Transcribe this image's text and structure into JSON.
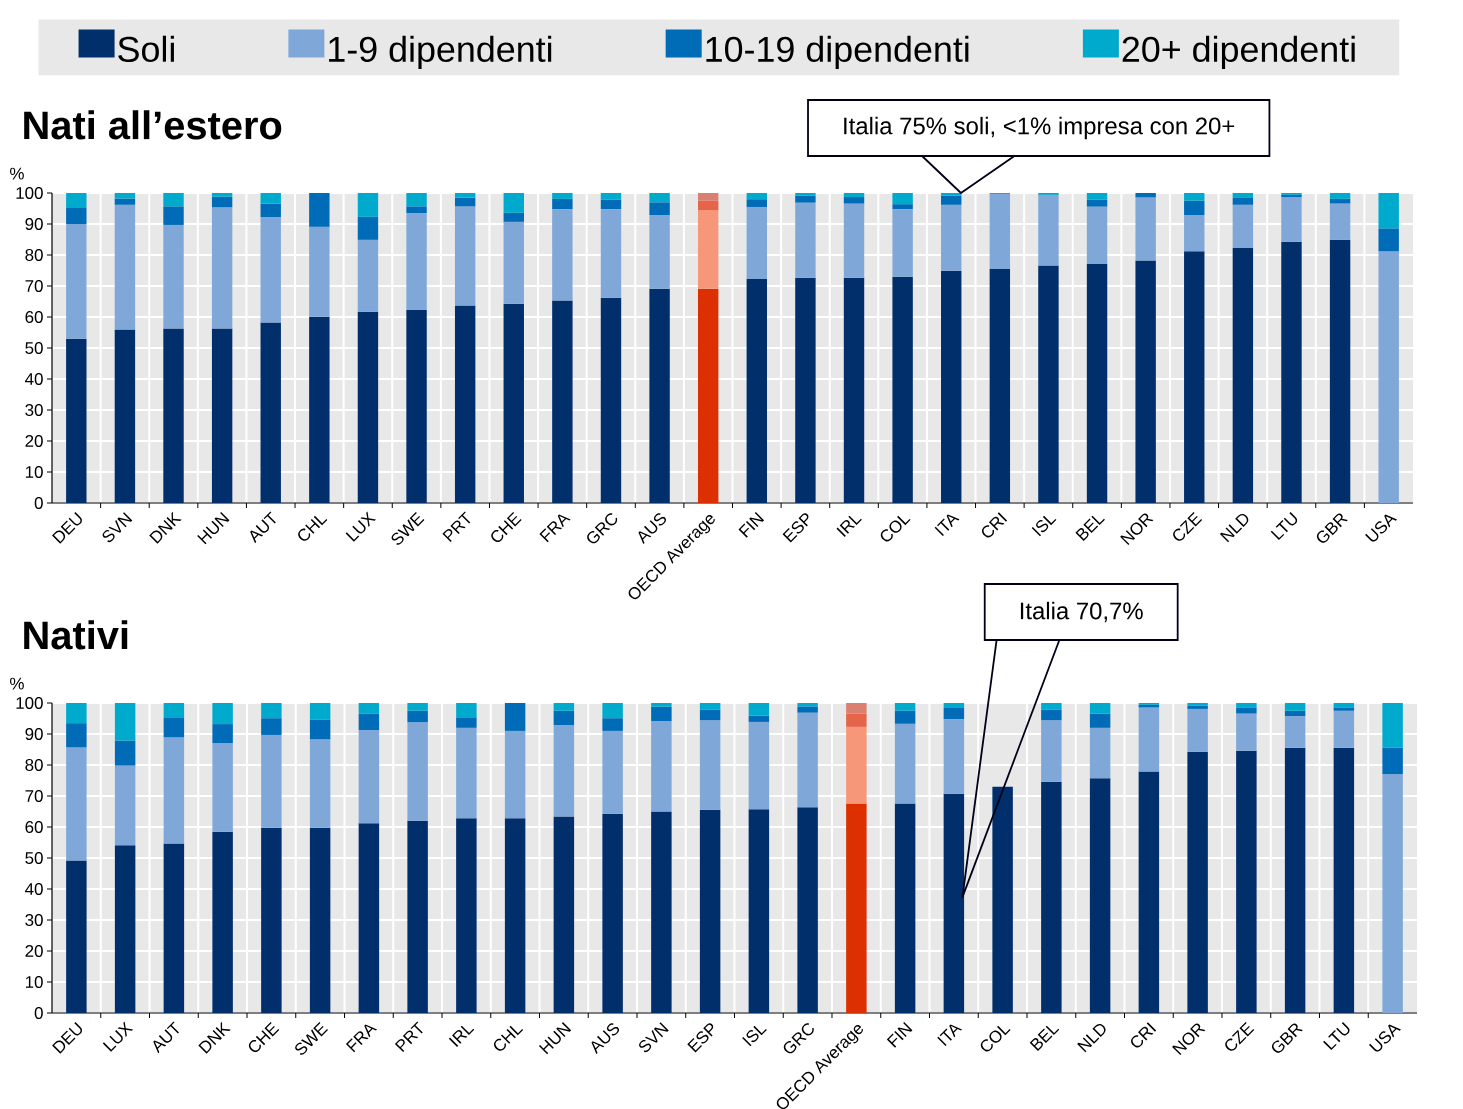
{
  "chart_data": [
    {
      "type": "bar",
      "title": "Nati all’estero",
      "ylabel": "%",
      "stacked": true,
      "grid": true,
      "legend": "top",
      "ylim": [
        0,
        100
      ],
      "yticks": [
        0,
        10,
        20,
        30,
        40,
        50,
        60,
        70,
        80,
        90,
        100
      ],
      "categories": [
        "DEU",
        "SVN",
        "DNK",
        "HUN",
        "AUT",
        "CHL",
        "LUX",
        "SWE",
        "PRT",
        "CHE",
        "FRA",
        "GRC",
        "AUS",
        "OECD Average",
        "FIN",
        "ESP",
        "IRL",
        "COL",
        "ITA",
        "CRI",
        "ISL",
        "BEL",
        "NOR",
        "CZE",
        "NLD",
        "LTU",
        "GBR",
        "USA"
      ],
      "series": [
        {
          "name": "Soli",
          "color": "#002f6c",
          "colors": [
            "#002f6c",
            "#002f6c",
            "#002f6c",
            "#002f6c",
            "#002f6c",
            "#002f6c",
            "#002f6c",
            "#002f6c",
            "#002f6c",
            "#002f6c",
            "#002f6c",
            "#002f6c",
            "#002f6c",
            "#dc3000",
            "#002f6c",
            "#002f6c",
            "#002f6c",
            "#002f6c",
            "#002f6c",
            "#002f6c",
            "#002f6c",
            "#002f6c",
            "#002f6c",
            "#002f6c",
            "#002f6c",
            "#002f6c",
            "#002f6c",
            "#002f6c"
          ],
          "values": [
            53.0,
            56.0,
            56.3,
            56.3,
            58.2,
            60.1,
            61.7,
            62.3,
            63.7,
            64.3,
            65.3,
            66.2,
            69.1,
            69.1,
            72.3,
            72.7,
            72.7,
            73.0,
            74.9,
            75.5,
            76.6,
            77.1,
            78.2,
            81.2,
            82.3,
            84.3,
            84.9,
            0
          ]
        },
        {
          "name": "1-9 dipendenti",
          "color": "#7fa8d9",
          "colors": [
            "#7fa8d9",
            "#7fa8d9",
            "#7fa8d9",
            "#7fa8d9",
            "#7fa8d9",
            "#7fa8d9",
            "#7fa8d9",
            "#7fa8d9",
            "#7fa8d9",
            "#7fa8d9",
            "#7fa8d9",
            "#7fa8d9",
            "#7fa8d9",
            "#f79779",
            "#7fa8d9",
            "#7fa8d9",
            "#7fa8d9",
            "#7fa8d9",
            "#7fa8d9",
            "#7fa8d9",
            "#7fa8d9",
            "#7fa8d9",
            "#7fa8d9",
            "#7fa8d9",
            "#7fa8d9",
            "#7fa8d9",
            "#7fa8d9",
            "#7fa8d9"
          ],
          "values": [
            37.0,
            40.2,
            33.4,
            39.1,
            34.0,
            29.0,
            23.2,
            31.2,
            32.0,
            26.4,
            29.5,
            28.6,
            23.8,
            25.4,
            23.2,
            24.2,
            23.9,
            21.8,
            21.3,
            24.2,
            22.8,
            18.5,
            20.4,
            11.7,
            13.9,
            14.4,
            11.7,
            81.2
          ]
        },
        {
          "name": "10-19 dipendenti",
          "color": "#006bb6",
          "colors": [
            "#006bb6",
            "#006bb6",
            "#006bb6",
            "#006bb6",
            "#006bb6",
            "#006bb6",
            "#006bb6",
            "#006bb6",
            "#006bb6",
            "#006bb6",
            "#006bb6",
            "#006bb6",
            "#006bb6",
            "#e5644a",
            "#006bb6",
            "#006bb6",
            "#006bb6",
            "#006bb6",
            "#006bb6",
            "#006bb6",
            "#006bb6",
            "#006bb6",
            "#006bb6",
            "#006bb6",
            "#006bb6",
            "#006bb6",
            "#006bb6",
            "#006bb6"
          ],
          "values": [
            5.4,
            2.0,
            6.0,
            3.4,
            4.4,
            10.9,
            7.4,
            2.2,
            2.8,
            2.9,
            3.3,
            3.0,
            4.1,
            3.1,
            2.5,
            2.2,
            2.1,
            1.6,
            3.0,
            0,
            0,
            2.2,
            1.4,
            4.6,
            2.2,
            0.7,
            1.5,
            7.4
          ]
        },
        {
          "name": "20+ dipendenti",
          "color": "#00aacc",
          "colors": [
            "#00aacc",
            "#00aacc",
            "#00aacc",
            "#00aacc",
            "#00aacc",
            "#00aacc",
            "#00aacc",
            "#00aacc",
            "#00aacc",
            "#00aacc",
            "#00aacc",
            "#00aacc",
            "#00aacc",
            "#d98070",
            "#00aacc",
            "#00aacc",
            "#00aacc",
            "#00aacc",
            "#00aacc",
            "#00aacc",
            "#00aacc",
            "#00aacc",
            "#00aacc",
            "#00aacc",
            "#00aacc",
            "#00aacc",
            "#00aacc",
            "#00aacc"
          ],
          "values": [
            4.6,
            1.8,
            4.3,
            1.2,
            3.4,
            0,
            7.7,
            4.3,
            1.5,
            6.4,
            1.9,
            2.2,
            3.0,
            2.4,
            2.0,
            0.9,
            1.3,
            3.6,
            0.8,
            0.3,
            0.6,
            2.2,
            0,
            2.5,
            1.6,
            0.6,
            1.9,
            11.4
          ]
        }
      ],
      "annotations": [
        {
          "text": "Italia 75% soli, <1% impresa con 20+",
          "x": "ITA",
          "y": 100
        }
      ]
    },
    {
      "type": "bar",
      "title": "Nativi",
      "ylabel": "%",
      "stacked": true,
      "grid": true,
      "ylim": [
        0,
        100
      ],
      "yticks": [
        0,
        10,
        20,
        30,
        40,
        50,
        60,
        70,
        80,
        90,
        100
      ],
      "categories": [
        "DEU",
        "LUX",
        "AUT",
        "DNK",
        "CHE",
        "SWE",
        "FRA",
        "PRT",
        "IRL",
        "CHL",
        "HUN",
        "AUS",
        "SVN",
        "ESP",
        "ISL",
        "GRC",
        "OECD Average",
        "FIN",
        "ITA",
        "COL",
        "BEL",
        "NLD",
        "CRI",
        "NOR",
        "CZE",
        "GBR",
        "LTU",
        "USA"
      ],
      "series": [
        {
          "colors": [
            "#002f6c",
            "#002f6c",
            "#002f6c",
            "#002f6c",
            "#002f6c",
            "#002f6c",
            "#002f6c",
            "#002f6c",
            "#002f6c",
            "#002f6c",
            "#002f6c",
            "#002f6c",
            "#002f6c",
            "#002f6c",
            "#002f6c",
            "#002f6c",
            "#dc3000",
            "#002f6c",
            "#002f6c",
            "#002f6c",
            "#002f6c",
            "#002f6c",
            "#002f6c",
            "#002f6c",
            "#002f6c",
            "#002f6c",
            "#002f6c",
            "#002f6c"
          ],
          "values": [
            49.2,
            54.1,
            54.7,
            58.5,
            59.8,
            59.8,
            61.2,
            62.0,
            62.8,
            62.8,
            63.4,
            64.3,
            65.0,
            65.6,
            65.7,
            66.4,
            67.6,
            67.6,
            70.7,
            73.0,
            74.6,
            75.7,
            77.9,
            84.3,
            84.6,
            85.6,
            85.6,
            0
          ]
        },
        {
          "colors": [
            "#7fa8d9",
            "#7fa8d9",
            "#7fa8d9",
            "#7fa8d9",
            "#7fa8d9",
            "#7fa8d9",
            "#7fa8d9",
            "#7fa8d9",
            "#7fa8d9",
            "#7fa8d9",
            "#7fa8d9",
            "#7fa8d9",
            "#7fa8d9",
            "#7fa8d9",
            "#7fa8d9",
            "#7fa8d9",
            "#f79779",
            "#7fa8d9",
            "#7fa8d9",
            "#7fa8d9",
            "#7fa8d9",
            "#7fa8d9",
            "#7fa8d9",
            "#7fa8d9",
            "#7fa8d9",
            "#7fa8d9",
            "#7fa8d9",
            "#7fa8d9"
          ],
          "values": [
            36.5,
            25.7,
            34.2,
            28.6,
            29.9,
            28.5,
            30.1,
            31.8,
            29.2,
            28.2,
            29.5,
            26.7,
            29.2,
            28.9,
            28.2,
            30.5,
            24.7,
            25.7,
            24.1,
            null,
            19.9,
            16.3,
            20.7,
            13.8,
            12.0,
            10.2,
            11.9,
            77.1
          ]
        },
        {
          "colors": [
            "#006bb6",
            "#006bb6",
            "#006bb6",
            "#006bb6",
            "#006bb6",
            "#006bb6",
            "#006bb6",
            "#006bb6",
            "#006bb6",
            "#006bb6",
            "#006bb6",
            "#006bb6",
            "#006bb6",
            "#006bb6",
            "#006bb6",
            "#006bb6",
            "#e5644a",
            "#006bb6",
            "#006bb6",
            "#006bb6",
            "#006bb6",
            "#006bb6",
            "#006bb6",
            "#006bb6",
            "#006bb6",
            "#006bb6",
            "#006bb6",
            "#006bb6"
          ],
          "values": [
            7.8,
            8.1,
            6.5,
            6.1,
            5.4,
            6.4,
            5.2,
            3.7,
            3.4,
            9.0,
            4.6,
            4.1,
            4.6,
            3.3,
            2.0,
            2.0,
            4.3,
            4.2,
            3.6,
            null,
            3.3,
            4.6,
            0.8,
            1.0,
            2.0,
            1.7,
            1.1,
            8.5
          ]
        },
        {
          "colors": [
            "#00aacc",
            "#00aacc",
            "#00aacc",
            "#00aacc",
            "#00aacc",
            "#00aacc",
            "#00aacc",
            "#00aacc",
            "#00aacc",
            "#00aacc",
            "#00aacc",
            "#00aacc",
            "#00aacc",
            "#00aacc",
            "#00aacc",
            "#00aacc",
            "#d98070",
            "#00aacc",
            "#00aacc",
            "#00aacc",
            "#00aacc",
            "#00aacc",
            "#00aacc",
            "#00aacc",
            "#00aacc",
            "#00aacc",
            "#00aacc",
            "#00aacc"
          ],
          "values": [
            6.5,
            12.1,
            4.6,
            6.8,
            4.9,
            5.3,
            3.5,
            2.5,
            4.6,
            0,
            2.5,
            4.9,
            1.2,
            2.2,
            4.1,
            1.1,
            3.4,
            2.5,
            1.6,
            null,
            2.2,
            3.4,
            0.6,
            0.9,
            1.4,
            2.5,
            1.4,
            14.4
          ]
        }
      ],
      "annotations": [
        "Italia 70,7%"
      ]
    }
  ]
}
